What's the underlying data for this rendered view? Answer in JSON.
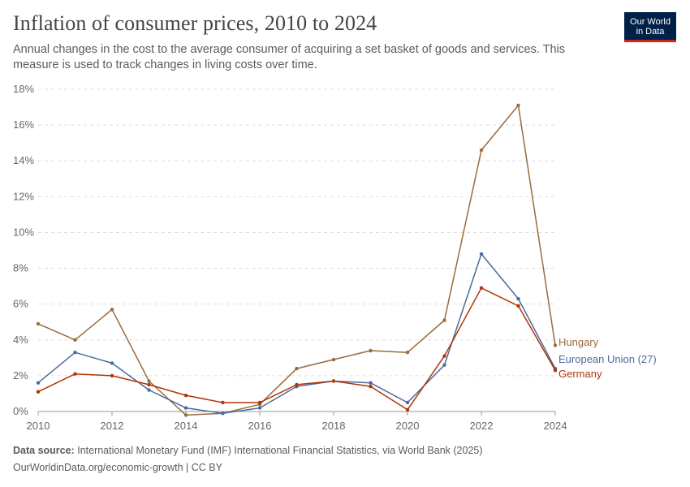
{
  "header": {
    "title": "Inflation of consumer prices, 2010 to 2024",
    "subtitle": "Annual changes in the cost to the average consumer of acquiring a set basket of goods and services. This measure is used to track changes in living costs over time."
  },
  "logo": {
    "line1": "Our World",
    "line2": "in Data",
    "bg_color": "#002147",
    "accent_color": "#ce261e"
  },
  "footer": {
    "source_label": "Data source:",
    "source_text": "International Monetary Fund (IMF) International Financial Statistics, via World Bank (2025)",
    "url_text": "OurWorldinData.org/economic-growth | CC BY"
  },
  "chart_data": {
    "type": "line",
    "title": "Inflation of consumer prices, 2010 to 2024",
    "xlabel": "",
    "ylabel": "",
    "x": [
      2010,
      2011,
      2012,
      2013,
      2014,
      2015,
      2016,
      2017,
      2018,
      2019,
      2020,
      2021,
      2022,
      2023,
      2024
    ],
    "xlim": [
      2010,
      2024
    ],
    "ylim": [
      0,
      18
    ],
    "x_ticks": [
      "2010",
      "2012",
      "2014",
      "2016",
      "2018",
      "2020",
      "2022",
      "2024"
    ],
    "y_ticks": [
      "0%",
      "2%",
      "4%",
      "6%",
      "8%",
      "10%",
      "12%",
      "14%",
      "16%",
      "18%"
    ],
    "grid": "horizontal dashed",
    "legend": "right end labels",
    "series": [
      {
        "name": "Hungary",
        "color": "#9a6b3e",
        "values": [
          4.9,
          4.0,
          5.7,
          1.7,
          -0.2,
          -0.1,
          0.4,
          2.4,
          2.9,
          3.4,
          3.3,
          5.1,
          14.6,
          17.1,
          3.7
        ]
      },
      {
        "name": "European Union (27)",
        "color": "#4c6a9c",
        "values": [
          1.6,
          3.3,
          2.7,
          1.2,
          0.2,
          -0.1,
          0.2,
          1.4,
          1.7,
          1.6,
          0.5,
          2.6,
          8.8,
          6.3,
          2.4
        ]
      },
      {
        "name": "Germany",
        "color": "#b13507",
        "values": [
          1.1,
          2.1,
          2.0,
          1.5,
          0.9,
          0.5,
          0.5,
          1.5,
          1.7,
          1.4,
          0.1,
          3.1,
          6.9,
          5.9,
          2.3
        ]
      }
    ]
  }
}
